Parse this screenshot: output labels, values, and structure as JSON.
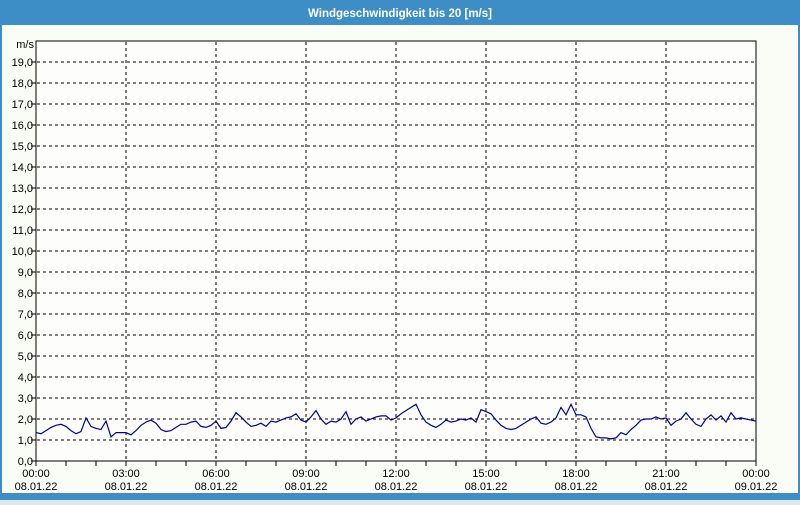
{
  "window": {
    "title": "Windgeschwindigkeit bis 20 [m/s]"
  },
  "colors": {
    "titlebar": "#3d8ec6",
    "frame": "#3d8ec6",
    "background": "#fafdf6",
    "plot_fill": "#fdfefc",
    "plot_border": "#000000",
    "grid": "#000000",
    "line": "#0000a0",
    "text": "#000000",
    "title_text": "#ffffff"
  },
  "chart_data": {
    "type": "line",
    "title": "Windgeschwindigkeit bis 20 [m/s]",
    "ylabel": "m/s",
    "ylim": [
      0,
      20
    ],
    "ytick_step": 1.0,
    "ytick_labels": [
      "0,0",
      "1,0",
      "2,0",
      "3,0",
      "4,0",
      "5,0",
      "6,0",
      "7,0",
      "8,0",
      "9,0",
      "10,0",
      "11,0",
      "12,0",
      "13,0",
      "14,0",
      "15,0",
      "16,0",
      "17,0",
      "18,0",
      "19,0"
    ],
    "x_span_hours": 24,
    "x_major_step_hours": 3,
    "x_minor_step_hours": 1,
    "xtick_major": [
      {
        "time": "00:00",
        "date": "08.01.22"
      },
      {
        "time": "03:00",
        "date": "08.01.22"
      },
      {
        "time": "06:00",
        "date": "08.01.22"
      },
      {
        "time": "09:00",
        "date": "08.01.22"
      },
      {
        "time": "12:00",
        "date": "08.01.22"
      },
      {
        "time": "15:00",
        "date": "08.01.22"
      },
      {
        "time": "18:00",
        "date": "08.01.22"
      },
      {
        "time": "21:00",
        "date": "08.01.22"
      },
      {
        "time": "00:00",
        "date": "09.01.22"
      }
    ],
    "grid": "dashed",
    "legend": "none",
    "series": [
      {
        "name": "Windgeschwindigkeit",
        "unit": "m/s",
        "interval_minutes": 10,
        "color": "#0000a0",
        "values": [
          1.35,
          1.3,
          1.45,
          1.6,
          1.7,
          1.75,
          1.65,
          1.45,
          1.3,
          1.4,
          2.05,
          1.65,
          1.55,
          1.5,
          1.9,
          1.15,
          1.35,
          1.35,
          1.35,
          1.25,
          1.45,
          1.7,
          1.85,
          1.95,
          1.8,
          1.5,
          1.4,
          1.45,
          1.6,
          1.75,
          1.75,
          1.85,
          1.9,
          1.65,
          1.6,
          1.7,
          1.9,
          1.55,
          1.6,
          1.9,
          2.3,
          2.1,
          1.85,
          1.65,
          1.7,
          1.8,
          1.65,
          1.9,
          1.85,
          1.95,
          2.05,
          2.1,
          2.25,
          1.95,
          1.85,
          2.1,
          2.4,
          2.0,
          1.75,
          1.9,
          1.85,
          2.0,
          2.35,
          1.75,
          2.0,
          2.1,
          1.9,
          2.0,
          2.1,
          2.15,
          2.15,
          1.95,
          2.05,
          2.25,
          2.4,
          2.55,
          2.7,
          2.2,
          1.85,
          1.7,
          1.6,
          1.75,
          1.95,
          1.85,
          1.9,
          2.0,
          1.95,
          2.05,
          1.85,
          2.45,
          2.35,
          2.25,
          1.95,
          1.7,
          1.55,
          1.5,
          1.55,
          1.7,
          1.85,
          2.0,
          2.1,
          1.8,
          1.75,
          1.85,
          2.05,
          2.55,
          2.2,
          2.7,
          2.2,
          2.2,
          2.1,
          1.55,
          1.15,
          1.1,
          1.1,
          1.05,
          1.1,
          1.35,
          1.25,
          1.5,
          1.7,
          1.95,
          2.0,
          2.0,
          2.1,
          2.0,
          2.05,
          1.7,
          1.9,
          2.0,
          2.3,
          2.0,
          1.75,
          1.65,
          2.0,
          2.2,
          1.95,
          2.15,
          1.85,
          2.3,
          2.0,
          2.05,
          2.0,
          1.95,
          1.9
        ]
      }
    ]
  }
}
